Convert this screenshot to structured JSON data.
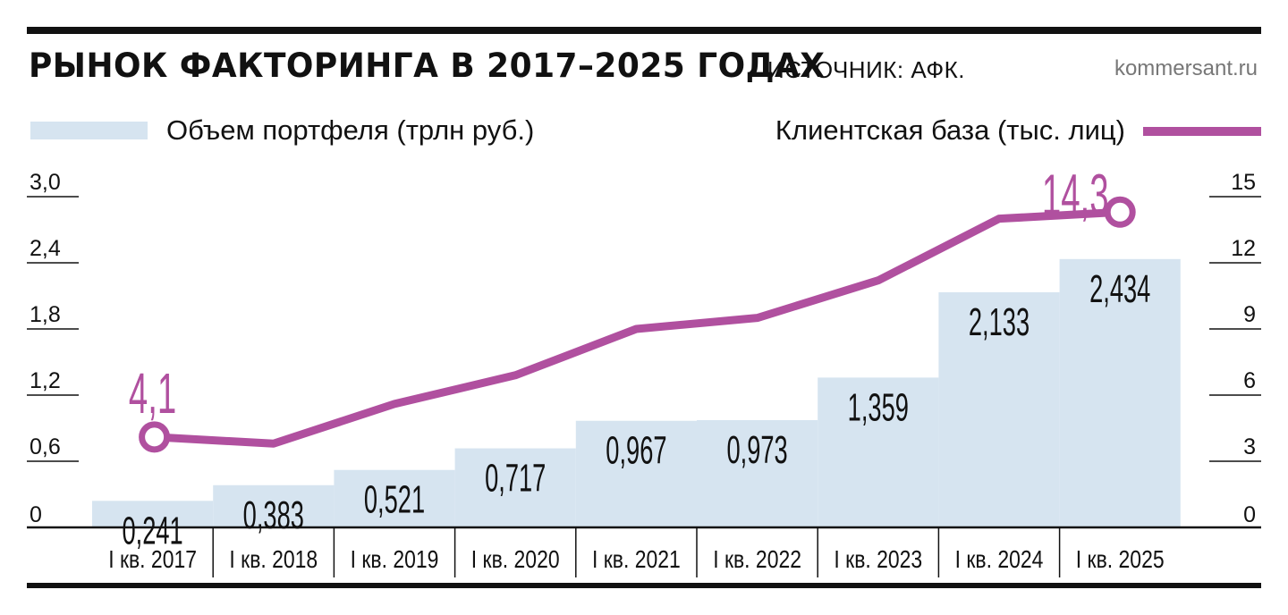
{
  "header": {
    "title": "РЫНОК ФАКТОРИНГА В 2017–2025 ГОДАХ",
    "source": "ИСТОЧНИК: АФК.",
    "site": "kommersant.ru"
  },
  "colors": {
    "bar": "#d6e4f0",
    "line": "#b0509f",
    "text": "#111111"
  },
  "chart_data": {
    "type": "bar",
    "title": "РЫНОК ФАКТОРИНГА В 2017–2025 ГОДАХ",
    "categories": [
      "I кв. 2017",
      "I кв. 2018",
      "I кв. 2019",
      "I кв. 2020",
      "I кв. 2021",
      "I кв. 2022",
      "I кв. 2023",
      "I кв. 2024",
      "I кв. 2025"
    ],
    "series": [
      {
        "name": "Объем портфеля (трлн руб.)",
        "type": "bar",
        "axis": "left",
        "values": [
          0.241,
          0.383,
          0.521,
          0.717,
          0.967,
          0.973,
          1.359,
          2.133,
          2.434
        ],
        "labels": [
          "0,241",
          "0,383",
          "0,521",
          "0,717",
          "0,967",
          "0,973",
          "1,359",
          "2,133",
          "2,434"
        ]
      },
      {
        "name": "Клиентская база (тыс. лиц)",
        "type": "line",
        "axis": "right",
        "values": [
          4.1,
          3.8,
          5.6,
          6.9,
          9.0,
          9.5,
          11.2,
          14.0,
          14.3
        ],
        "endpoint_labels": {
          "first": "4,1",
          "last": "14,3"
        }
      }
    ],
    "left_axis": {
      "ylim": [
        0,
        3.0
      ],
      "ticks": [
        0,
        0.6,
        1.2,
        1.8,
        2.4,
        3.0
      ],
      "tick_labels": [
        "0",
        "0,6",
        "1,2",
        "1,8",
        "2,4",
        "3,0"
      ]
    },
    "right_axis": {
      "ylim": [
        0,
        15
      ],
      "ticks": [
        0,
        3,
        6,
        9,
        12,
        15
      ],
      "tick_labels": [
        "0",
        "3",
        "6",
        "9",
        "12",
        "15"
      ]
    },
    "legend": "top",
    "grid": false
  }
}
